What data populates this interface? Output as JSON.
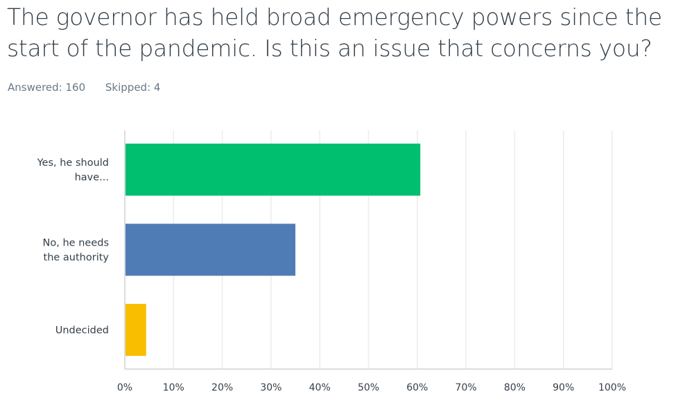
{
  "question": {
    "title": "The governor has held broad emergency powers since the start of the pandemic. Is this an issue that concerns you?"
  },
  "stats": {
    "answered": "Answered: 160",
    "skipped": "Skipped: 4"
  },
  "chart_data": {
    "type": "bar",
    "orientation": "horizontal",
    "categories": [
      [
        "Yes, he should",
        "have..."
      ],
      [
        "No, he needs",
        "the authority"
      ],
      [
        "Undecided"
      ]
    ],
    "values": [
      60.63,
      35.0,
      4.38
    ],
    "colors": [
      "#00bf6f",
      "#507cb6",
      "#f9be00"
    ],
    "xlim": [
      0,
      100
    ],
    "ticks": [
      "0%",
      "10%",
      "20%",
      "30%",
      "40%",
      "50%",
      "60%",
      "70%",
      "80%",
      "90%",
      "100%"
    ],
    "grid": true,
    "xlabel": "",
    "ylabel": ""
  }
}
